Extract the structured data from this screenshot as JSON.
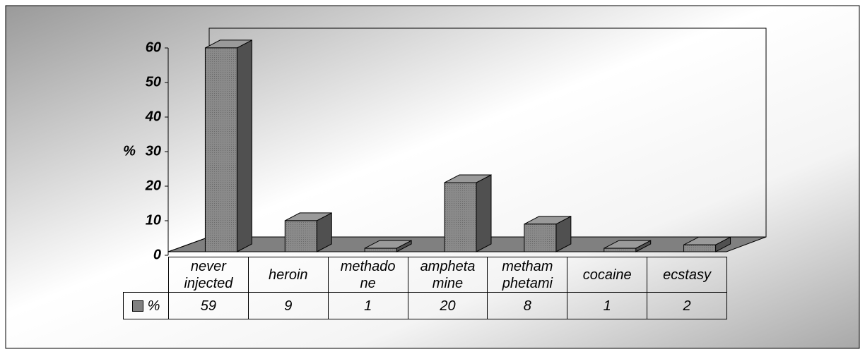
{
  "chart_data": {
    "type": "bar3d",
    "y_label": "%",
    "categories": [
      "never\ninjected",
      "heroin",
      "methado\nne",
      "ampheta\nmine",
      "metham\nphetami",
      "cocaine",
      "ecstasy"
    ],
    "series": [
      {
        "name": "%",
        "color": "#808080",
        "values": [
          59,
          9,
          1,
          20,
          8,
          1,
          2
        ]
      }
    ],
    "ylim": [
      0,
      60
    ],
    "yticks": [
      0,
      10,
      20,
      30,
      40,
      50,
      60
    ],
    "grid": false,
    "data_table": true
  }
}
